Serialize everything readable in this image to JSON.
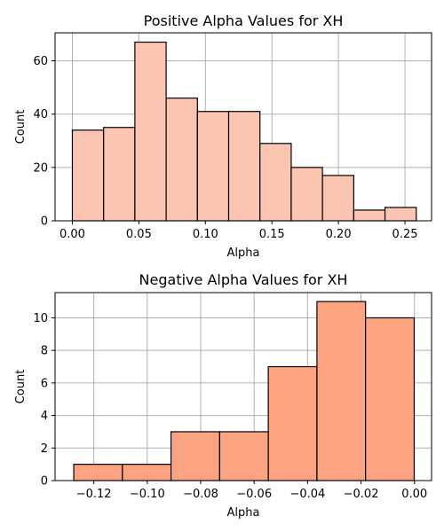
{
  "chart_data": [
    {
      "type": "bar",
      "title": "Positive Alpha Values for XH",
      "xlabel": "Alpha",
      "ylabel": "Count",
      "color": "#fcc5b2",
      "grid": true,
      "xlim": [
        -0.013,
        0.27
      ],
      "ylim": [
        0,
        70.5
      ],
      "xticks": [
        0.0,
        0.05,
        0.1,
        0.15,
        0.2,
        0.25
      ],
      "xtick_labels": [
        "0.00",
        "0.05",
        "0.10",
        "0.15",
        "0.20",
        "0.25"
      ],
      "yticks": [
        0,
        20,
        40,
        60
      ],
      "ytick_labels": [
        "0",
        "20",
        "40",
        "60"
      ],
      "bin_edges": [
        0.0,
        0.0235,
        0.047,
        0.0705,
        0.094,
        0.1175,
        0.141,
        0.1645,
        0.188,
        0.2115,
        0.235,
        0.2585
      ],
      "values": [
        34,
        35,
        67,
        46,
        41,
        41,
        29,
        20,
        17,
        4,
        5
      ]
    },
    {
      "type": "bar",
      "title": "Negative Alpha Values for XH",
      "xlabel": "Alpha",
      "ylabel": "Count",
      "color": "#fca482",
      "grid": true,
      "xlim": [
        -0.1345,
        0.0064
      ],
      "ylim": [
        0,
        11.55
      ],
      "xticks": [
        -0.12,
        -0.1,
        -0.08,
        -0.06,
        -0.04,
        -0.02,
        0.0
      ],
      "xtick_labels": [
        "−0.12",
        "−0.10",
        "−0.08",
        "−0.06",
        "−0.04",
        "−0.02",
        "0.00"
      ],
      "yticks": [
        0,
        2,
        4,
        6,
        8,
        10
      ],
      "ytick_labels": [
        "0",
        "2",
        "4",
        "6",
        "8",
        "10"
      ],
      "bin_edges": [
        -0.1275,
        -0.1093,
        -0.0911,
        -0.0729,
        -0.0547,
        -0.0365,
        -0.0183,
        -0.0001
      ],
      "values": [
        1,
        1,
        3,
        3,
        7,
        11,
        10
      ]
    }
  ]
}
